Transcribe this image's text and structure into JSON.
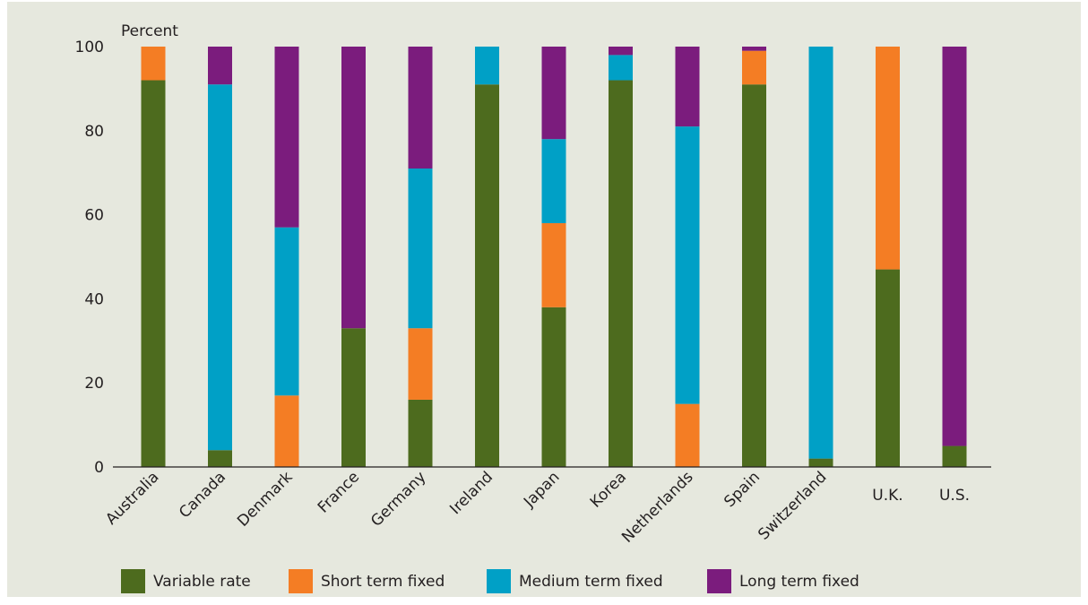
{
  "chart_data": {
    "type": "bar",
    "stacked": true,
    "ylabel": "Percent",
    "ylim": [
      0,
      100
    ],
    "yticks": [
      0,
      20,
      40,
      60,
      80,
      100
    ],
    "grid": false,
    "legend_position": "bottom",
    "categories": [
      "Australia",
      "Canada",
      "Denmark",
      "France",
      "Germany",
      "Ireland",
      "Japan",
      "Korea",
      "Netherlands",
      "Spain",
      "Switzerland",
      "U.K.",
      "U.S."
    ],
    "category_label_rotation": [
      -45,
      -45,
      -45,
      -45,
      -45,
      -45,
      -45,
      -45,
      -45,
      -45,
      -45,
      0,
      0
    ],
    "series": [
      {
        "name": "Variable rate",
        "color": "#4d6b1e",
        "values": [
          92,
          4,
          0,
          33,
          16,
          91,
          38,
          92,
          0,
          91,
          2,
          47,
          5
        ]
      },
      {
        "name": "Short term fixed",
        "color": "#f47d24",
        "values": [
          8,
          0,
          17,
          0,
          17,
          0,
          20,
          0,
          15,
          8,
          0,
          53,
          0
        ]
      },
      {
        "name": "Medium term fixed",
        "color": "#00a0c6",
        "values": [
          0,
          87,
          40,
          0,
          38,
          9,
          20,
          6,
          66,
          0,
          98,
          0,
          0
        ]
      },
      {
        "name": "Long term fixed",
        "color": "#7b1c7d",
        "values": [
          0,
          9,
          43,
          67,
          29,
          0,
          22,
          2,
          19,
          1,
          0,
          0,
          95
        ]
      }
    ]
  }
}
